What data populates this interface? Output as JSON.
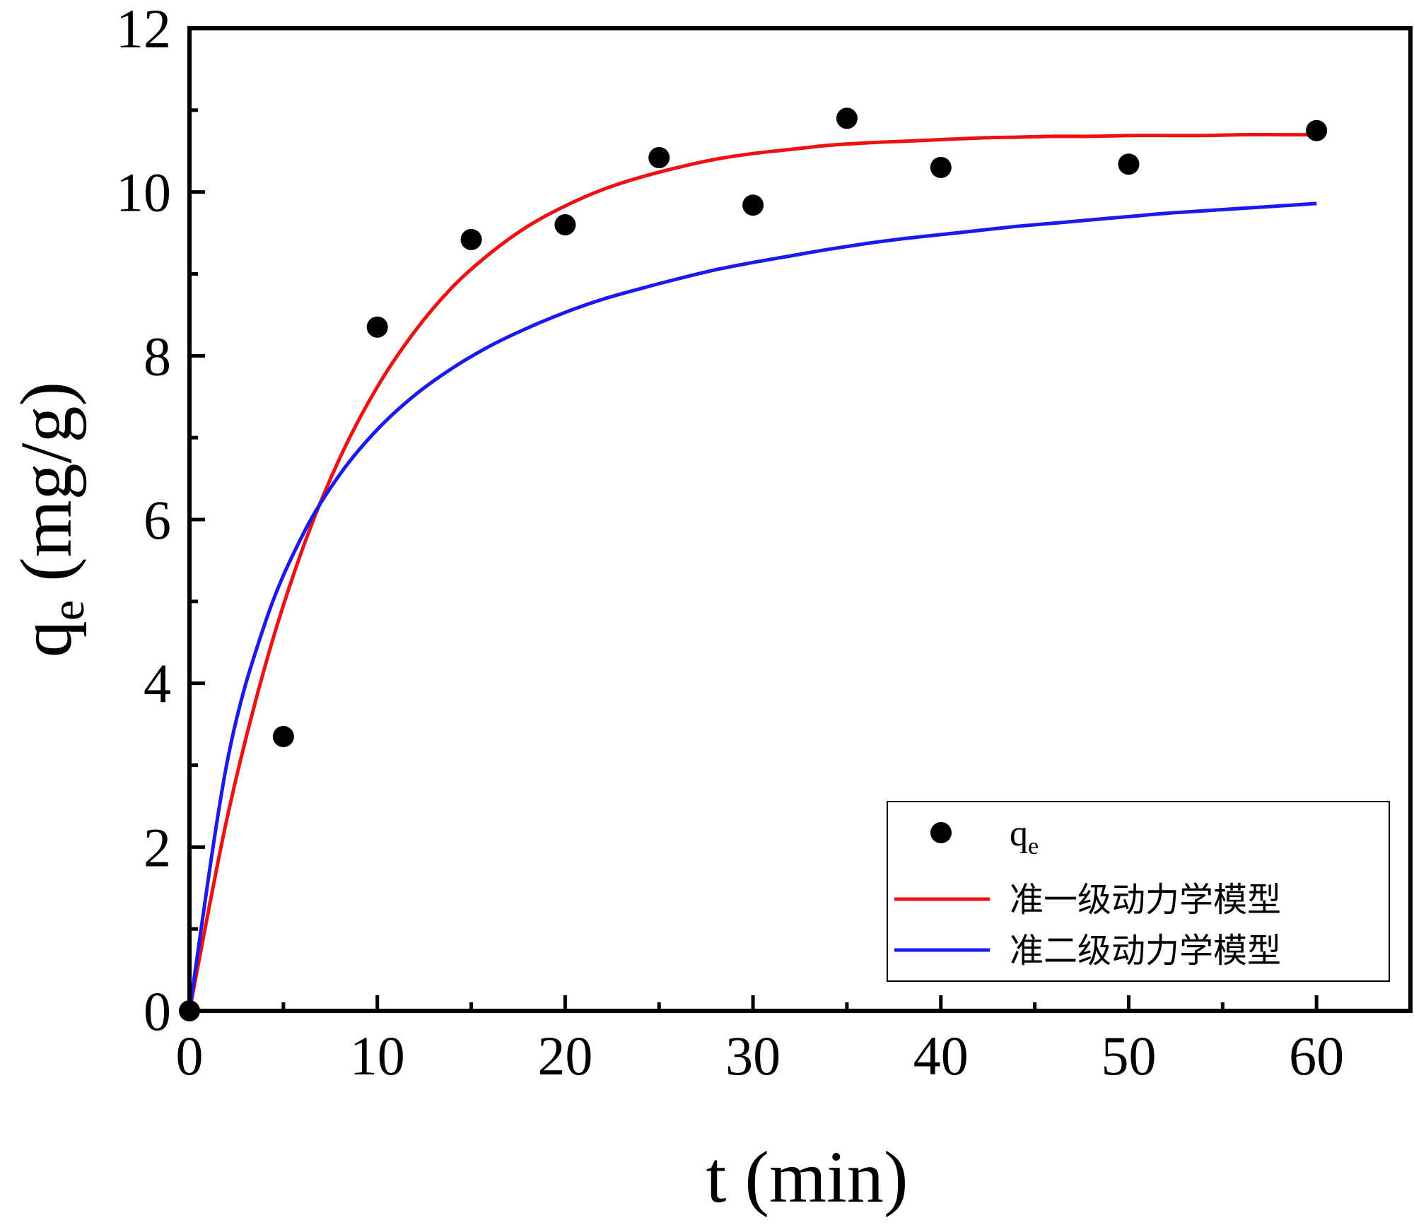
{
  "chart_data": {
    "type": "scatter",
    "xlabel": "t (min)",
    "ylabel_main": "q",
    "ylabel_sub": "e",
    "ylabel_unit": " (mg/g)",
    "xlim": [
      0,
      65
    ],
    "ylim": [
      0,
      12
    ],
    "x_ticks": [
      0,
      10,
      20,
      30,
      40,
      50,
      60
    ],
    "y_ticks": [
      0,
      2,
      4,
      6,
      8,
      10,
      12
    ],
    "x_minor_ticks": [
      5,
      15,
      25,
      35,
      45,
      55
    ],
    "y_minor_ticks": [
      1,
      3,
      5,
      7,
      9,
      11
    ],
    "grid": false,
    "legend_position": "bottom-right",
    "series": [
      {
        "name_main": "q",
        "name_sub": "e",
        "kind": "points",
        "color": "#000000",
        "x": [
          0,
          5,
          10,
          15,
          20,
          25,
          30,
          35,
          40,
          50,
          60
        ],
        "y": [
          0,
          3.35,
          8.35,
          9.42,
          9.6,
          10.42,
          9.84,
          10.9,
          10.3,
          10.34,
          10.75
        ]
      },
      {
        "name": "准一级动力学模型",
        "kind": "curve",
        "color": "#ee1111",
        "x": [
          0,
          2,
          4,
          6,
          8,
          10,
          12,
          14,
          16,
          18,
          20,
          22,
          24,
          26,
          28,
          30,
          32,
          34,
          36,
          38,
          40,
          42,
          44,
          46,
          48,
          50,
          52,
          54,
          56,
          58,
          60
        ],
        "y": [
          0,
          2.35,
          4.19,
          5.63,
          6.75,
          7.62,
          8.3,
          8.84,
          9.25,
          9.58,
          9.83,
          10.03,
          10.18,
          10.3,
          10.4,
          10.47,
          10.52,
          10.57,
          10.6,
          10.62,
          10.64,
          10.66,
          10.67,
          10.68,
          10.68,
          10.69,
          10.69,
          10.69,
          10.7,
          10.7,
          10.7
        ]
      },
      {
        "name": "准二级动力学模型",
        "kind": "curve",
        "color": "#1a1aee",
        "x": [
          0,
          2,
          4,
          6,
          8,
          10,
          12,
          14,
          16,
          18,
          20,
          22,
          24,
          26,
          28,
          30,
          32,
          34,
          36,
          38,
          40,
          42,
          44,
          46,
          48,
          50,
          52,
          54,
          56,
          58,
          60
        ],
        "y": [
          0,
          3.03,
          4.72,
          5.8,
          6.55,
          7.1,
          7.52,
          7.85,
          8.12,
          8.34,
          8.53,
          8.69,
          8.82,
          8.94,
          9.05,
          9.14,
          9.22,
          9.3,
          9.37,
          9.43,
          9.48,
          9.53,
          9.58,
          9.62,
          9.66,
          9.7,
          9.74,
          9.77,
          9.8,
          9.83,
          9.86
        ]
      }
    ]
  }
}
